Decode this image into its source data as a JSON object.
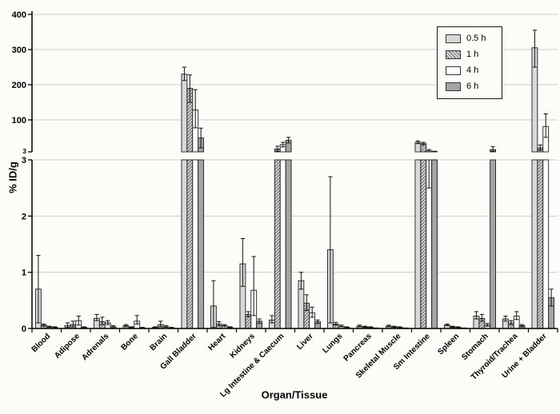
{
  "figure": {
    "background": "#fdfcf8"
  },
  "chart_data": {
    "type": "bar",
    "title": "",
    "xlabel": "Organ/Tissue",
    "ylabel": "% ID/g",
    "grid": true,
    "legend_position": "top-right",
    "axis_break": true,
    "upper_axis": {
      "min": 3,
      "max": 400,
      "ticks": [
        3,
        100,
        200,
        300,
        400
      ],
      "gridlines": [
        100,
        200,
        300,
        400
      ]
    },
    "lower_axis": {
      "min": 0,
      "max": 3,
      "ticks": [
        0,
        1,
        2,
        3
      ],
      "gridlines": [
        1,
        2,
        3
      ]
    },
    "colors": {
      "grid": "#cbcbcb",
      "axis": "#000000",
      "bar_outline": "#1f1f1f",
      "error": "#111111",
      "legend_border": "#1a1a1a"
    },
    "categories": [
      "Blood",
      "Adipose",
      "Adrenals",
      "Bone",
      "Brain",
      "Gall Bladder",
      "Heart",
      "Kidneys",
      "Lg Intestine & Caecum",
      "Liver",
      "Lungs",
      "Pancreas",
      "Skeletal Muscle",
      "Sm Intestine",
      "Spleen",
      "Stomach",
      "Thyroid/Trachea",
      "Urine + Bladder"
    ],
    "series": [
      {
        "name": "0.5 h",
        "pattern": "solid",
        "fill": "#d9d9d9",
        "values": [
          0.7,
          0.05,
          0.18,
          0.05,
          0.02,
          230,
          0.4,
          1.15,
          0.15,
          0.85,
          1.4,
          0.04,
          0.04,
          32,
          0.06,
          0.22,
          0.17,
          305
        ],
        "err_up": [
          0.6,
          0.05,
          0.07,
          0.02,
          0.01,
          20,
          0.45,
          0.45,
          0.08,
          0.15,
          1.3,
          0.02,
          0.02,
          4,
          0.02,
          0.08,
          0.05,
          50
        ],
        "err_down": [
          0.6,
          0.03,
          0.04,
          0.02,
          0.01,
          18,
          0.38,
          0.4,
          0.05,
          0.15,
          1.3,
          0.01,
          0.01,
          4,
          0.01,
          0.05,
          0.04,
          55
        ]
      },
      {
        "name": "1 h",
        "pattern": "hatch",
        "fill": "#d4d4d4",
        "hatch_color": "#6e6e6e",
        "values": [
          0.06,
          0.07,
          0.12,
          0.02,
          0.07,
          190,
          0.08,
          0.25,
          12,
          0.45,
          0.08,
          0.03,
          0.03,
          28,
          0.03,
          0.18,
          0.1,
          15
        ],
        "err_up": [
          0.02,
          0.06,
          0.08,
          0.01,
          0.06,
          38,
          0.04,
          0.05,
          8,
          0.15,
          0.03,
          0.01,
          0.01,
          4,
          0.01,
          0.07,
          0.04,
          9
        ],
        "err_down": [
          0.02,
          0.04,
          0.05,
          0.01,
          0.04,
          40,
          0.03,
          0.04,
          7,
          0.13,
          0.02,
          0.01,
          0.01,
          4,
          0.01,
          0.05,
          0.03,
          7
        ]
      },
      {
        "name": "4 h",
        "pattern": "solid",
        "fill": "#ffffff",
        "values": [
          0.03,
          0.14,
          0.1,
          0.13,
          0.03,
          128,
          0.05,
          0.68,
          25,
          0.28,
          0.04,
          0.02,
          0.02,
          6,
          0.02,
          0.06,
          0.22,
          80
        ],
        "err_up": [
          0.01,
          0.08,
          0.04,
          0.1,
          0.02,
          58,
          0.02,
          0.6,
          7,
          0.1,
          0.02,
          0.01,
          0.01,
          4,
          0.01,
          0.03,
          0.08,
          37
        ],
        "err_down": [
          0.01,
          0.08,
          0.03,
          0.05,
          0.01,
          52,
          0.02,
          0.45,
          7,
          0.08,
          0.01,
          0.01,
          0.01,
          3.5,
          0.01,
          0.02,
          0.06,
          33
        ]
      },
      {
        "name": "6 h",
        "pattern": "solid",
        "fill": "#a4a4a4",
        "values": [
          0.02,
          0.02,
          0.03,
          0.01,
          0.01,
          45,
          0.02,
          0.13,
          38,
          0.12,
          0.02,
          0.01,
          0.01,
          4,
          0.01,
          10,
          0.05,
          0.55
        ],
        "err_up": [
          0.01,
          0.01,
          0.02,
          0.01,
          0.01,
          30,
          0.01,
          0.04,
          9,
          0.03,
          0.01,
          0,
          0,
          1,
          0,
          9,
          0.02,
          0.15
        ],
        "err_down": [
          0.01,
          0.01,
          0.02,
          0,
          0,
          30,
          0.01,
          0.04,
          8,
          0.03,
          0.01,
          0,
          0,
          1,
          0,
          5,
          0.02,
          0.15
        ]
      }
    ]
  }
}
